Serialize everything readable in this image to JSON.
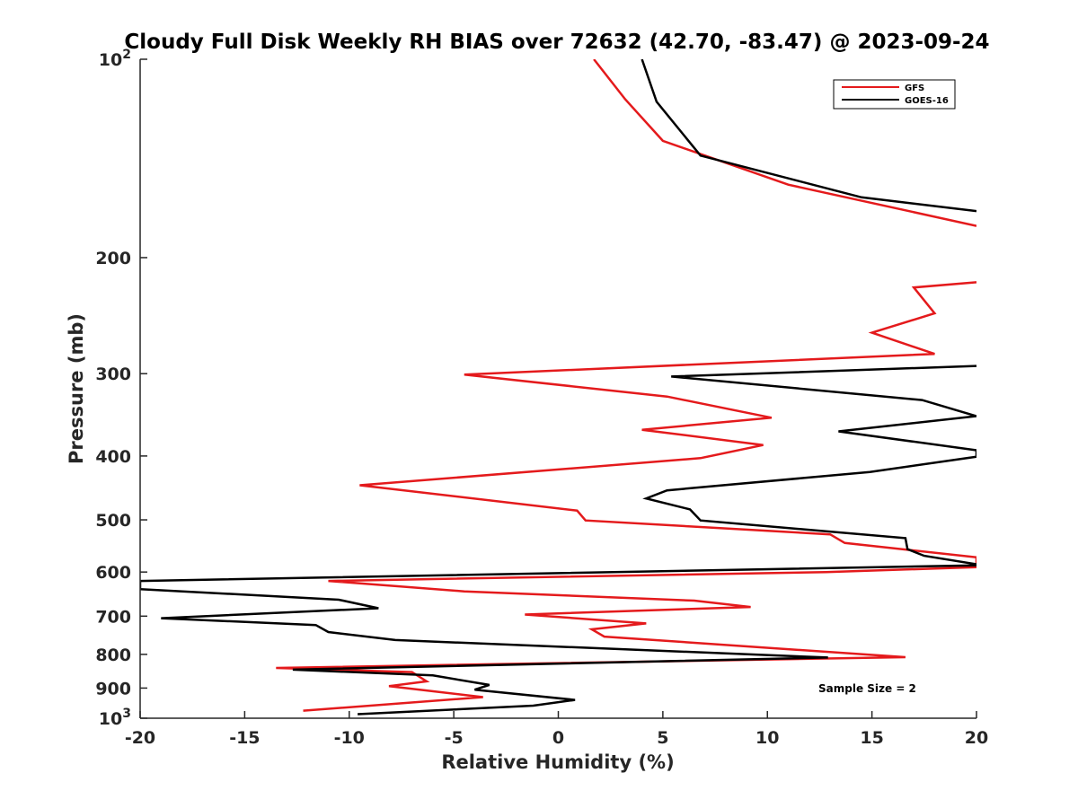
{
  "chart_data": {
    "type": "line",
    "title": "Cloudy Full Disk Weekly RH BIAS over 72632 (42.70, -83.47) @ 2023-09-24",
    "xlabel": "Relative Humidity (%)",
    "ylabel": "Pressure (mb)",
    "xlim": [
      -20,
      20
    ],
    "ylim": [
      100,
      1000
    ],
    "y_scale": "log",
    "y_reversed": true,
    "grid": false,
    "legend_position": "top-right",
    "x_ticks": [
      -20,
      -15,
      -10,
      -5,
      0,
      5,
      10,
      15,
      20
    ],
    "x_tick_labels": [
      "-20",
      "-15",
      "-10",
      "-5",
      "0",
      "5",
      "10",
      "15",
      "20"
    ],
    "y_ticks": [
      100,
      200,
      300,
      400,
      500,
      600,
      700,
      800,
      900,
      1000
    ],
    "y_tick_labels": [
      {
        "base": "10",
        "exp": "2"
      },
      {
        "base": "200"
      },
      {
        "base": "300"
      },
      {
        "base": "400"
      },
      {
        "base": "500"
      },
      {
        "base": "600"
      },
      {
        "base": "700"
      },
      {
        "base": "800"
      },
      {
        "base": "900"
      },
      {
        "base": "10",
        "exp": "3"
      }
    ],
    "annotation": "Sample Size = 2",
    "series": [
      {
        "name": "GFS",
        "color": "#e41a1c",
        "points": [
          [
            1.7,
            100
          ],
          [
            3.2,
            115
          ],
          [
            5.0,
            133
          ],
          [
            11.0,
            155
          ],
          [
            20.0,
            179
          ],
          [
            null,
            205
          ],
          [
            20.0,
            218
          ],
          [
            17.0,
            222
          ],
          [
            18.0,
            243
          ],
          [
            15.0,
            260
          ],
          [
            18.0,
            280
          ],
          [
            -4.5,
            301
          ],
          [
            5.2,
            325
          ],
          [
            10.2,
            350
          ],
          [
            4.0,
            365
          ],
          [
            9.8,
            385
          ],
          [
            6.8,
            403
          ],
          [
            -9.5,
            443
          ],
          [
            0.9,
            484
          ],
          [
            1.3,
            501
          ],
          [
            13.0,
            526
          ],
          [
            13.7,
            542
          ],
          [
            20.0,
            570
          ],
          [
            20.0,
            590
          ],
          [
            12.8,
            600
          ],
          [
            -11.0,
            619
          ],
          [
            -4.5,
            642
          ],
          [
            6.5,
            663
          ],
          [
            9.2,
            678
          ],
          [
            -1.6,
            696
          ],
          [
            4.2,
            718
          ],
          [
            1.6,
            733
          ],
          [
            2.2,
            752
          ],
          [
            16.6,
            808
          ],
          [
            -13.5,
            839
          ],
          [
            -7.0,
            851
          ],
          [
            -6.3,
            879
          ],
          [
            -8.1,
            894
          ],
          [
            -3.6,
            929
          ],
          [
            -12.2,
            974
          ]
        ]
      },
      {
        "name": "GOES-16",
        "color": "#000000",
        "points": [
          [
            4.0,
            100
          ],
          [
            4.7,
            116
          ],
          [
            6.8,
            140
          ],
          [
            14.5,
            162
          ],
          [
            20.0,
            170
          ],
          [
            null,
            205
          ],
          [
            20.0,
            292
          ],
          [
            5.4,
            303
          ],
          [
            17.4,
            329
          ],
          [
            20.0,
            348
          ],
          [
            13.4,
            367
          ],
          [
            20.0,
            392
          ],
          [
            20.0,
            401
          ],
          [
            14.9,
            423
          ],
          [
            5.2,
            451
          ],
          [
            4.2,
            464
          ],
          [
            6.3,
            482
          ],
          [
            6.8,
            501
          ],
          [
            16.6,
            533
          ],
          [
            16.7,
            554
          ],
          [
            17.5,
            567
          ],
          [
            20.3,
            586
          ],
          [
            -20.0,
            619
          ],
          [
            -20.0,
            637
          ],
          [
            -10.5,
            661
          ],
          [
            -8.6,
            681
          ],
          [
            -19.0,
            705
          ],
          [
            -11.6,
            722
          ],
          [
            -11.0,
            740
          ],
          [
            -7.8,
            761
          ],
          [
            12.9,
            809
          ],
          [
            -12.7,
            844
          ],
          [
            -6.0,
            861
          ],
          [
            -3.3,
            890
          ],
          [
            -4.0,
            905
          ],
          [
            0.8,
            938
          ],
          [
            -1.2,
            957
          ],
          [
            -9.6,
            986
          ]
        ]
      }
    ]
  }
}
